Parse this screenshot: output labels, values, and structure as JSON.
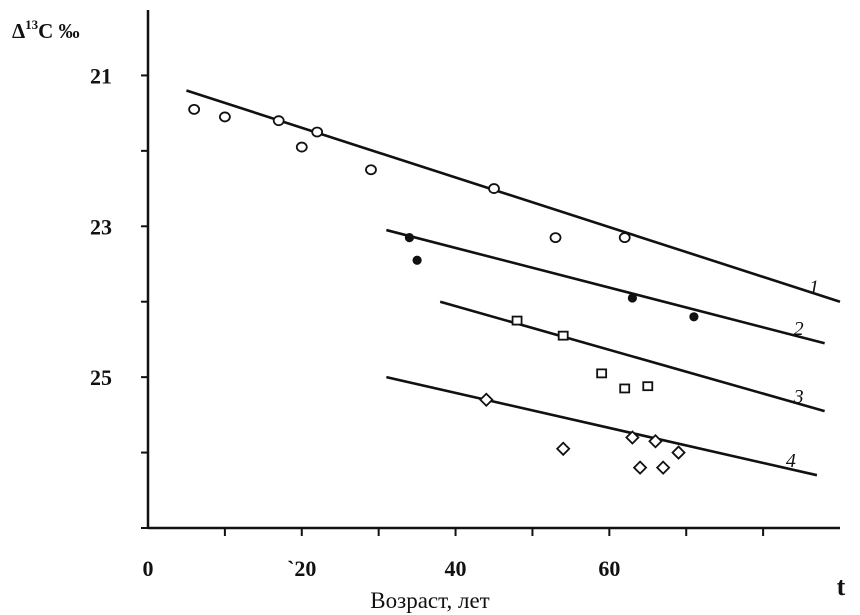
{
  "chart_data": {
    "type": "scatter",
    "title": "",
    "ylabel": "Δ13C ‰",
    "ylabel_parts": {
      "prefix": "Δ",
      "sup": "13",
      "suffix": "C ‰"
    },
    "xlabel": "Возраст, лет",
    "x_variable": "t",
    "xlim": [
      0,
      90
    ],
    "ylim": [
      27,
      20
    ],
    "y_inverted": true,
    "grid": false,
    "legend": "none",
    "x_ticks": [
      0,
      20,
      40,
      60
    ],
    "x_tick_labels": [
      "0",
      "`20",
      "40",
      "60"
    ],
    "y_ticks": [
      21,
      23,
      25
    ],
    "y_tick_labels": [
      "21",
      "23",
      "25"
    ],
    "series": [
      {
        "name": "1",
        "marker": "circle-open",
        "x": [
          6,
          10,
          17,
          20,
          22,
          29,
          45,
          53,
          62
        ],
        "y": [
          21.45,
          21.55,
          21.6,
          21.95,
          21.75,
          22.25,
          22.5,
          23.15,
          23.15
        ],
        "trend": {
          "x": [
            5,
            90
          ],
          "y": [
            21.2,
            24.0
          ]
        }
      },
      {
        "name": "2",
        "marker": "circle-filled",
        "x": [
          34,
          35,
          63,
          71
        ],
        "y": [
          23.15,
          23.45,
          23.95,
          24.2
        ],
        "trend": {
          "x": [
            31,
            88
          ],
          "y": [
            23.05,
            24.55
          ]
        }
      },
      {
        "name": "3",
        "marker": "square-open",
        "x": [
          48,
          54,
          59,
          62,
          65
        ],
        "y": [
          24.25,
          24.45,
          24.95,
          25.15,
          25.12
        ],
        "trend": {
          "x": [
            38,
            88
          ],
          "y": [
            24.0,
            25.45
          ]
        }
      },
      {
        "name": "4",
        "marker": "diamond-open",
        "x": [
          44,
          54,
          63,
          64,
          66,
          67,
          69
        ],
        "y": [
          25.3,
          25.95,
          25.8,
          26.2,
          25.85,
          26.2,
          26.0
        ],
        "trend": {
          "x": [
            31,
            87
          ],
          "y": [
            25.0,
            26.3
          ]
        }
      }
    ]
  }
}
